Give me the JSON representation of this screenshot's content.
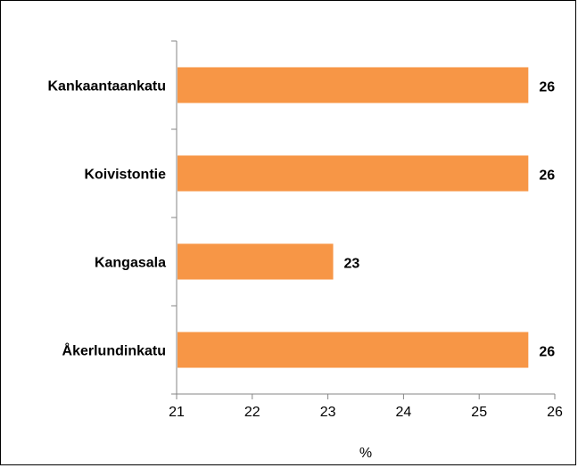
{
  "chart_data": {
    "type": "bar",
    "orientation": "horizontal",
    "categories": [
      "Kankaantaankatu",
      "Koivistontie",
      "Kangasala",
      "Åkerlundinkatu"
    ],
    "values": [
      25.65,
      25.65,
      23.07,
      25.65
    ],
    "value_labels": [
      "26",
      "26",
      "23",
      "26"
    ],
    "xlabel": "%",
    "ylabel": "",
    "xlim": [
      21,
      26
    ],
    "x_ticks": [
      "21",
      "22",
      "23",
      "24",
      "25",
      "26"
    ],
    "grid": false,
    "bar_color": "#F79646"
  }
}
